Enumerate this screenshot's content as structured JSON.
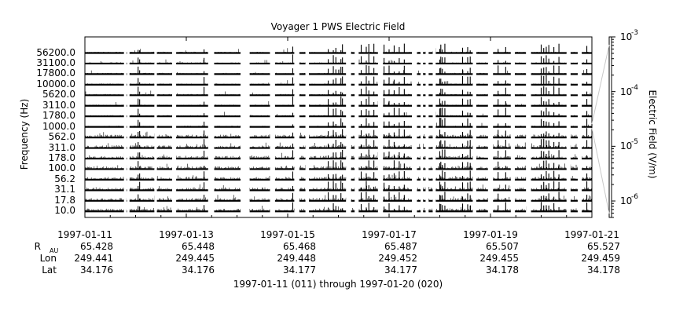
{
  "chart_data": {
    "type": "heatmap",
    "title": "Voyager 1 PWS Electric Field",
    "ylabel": "Frequency (Hz)",
    "y2label": "Electric Field (V/m)",
    "frequency_channels_hz": [
      "56200.0",
      "31100.0",
      "17800.0",
      "10000.0",
      "5620.0",
      "3110.0",
      "1780.0",
      "1000.0",
      "562.0",
      "311.0",
      "178.0",
      "100.0",
      "56.2",
      "31.1",
      "17.8",
      "10.0"
    ],
    "x_tick_dates": [
      "1997-01-11",
      "1997-01-13",
      "1997-01-15",
      "1997-01-17",
      "1997-01-19",
      "1997-01-21"
    ],
    "x_range_days": [
      0,
      10
    ],
    "colorbar": {
      "scale": "log",
      "range": [
        5e-07,
        0.001
      ],
      "ticks": [
        {
          "base": "10",
          "exp": "-3"
        },
        {
          "base": "10",
          "exp": "-4"
        },
        {
          "base": "10",
          "exp": "-5"
        },
        {
          "base": "10",
          "exp": "-6"
        }
      ]
    },
    "ephemeris_rows": [
      {
        "label": "R",
        "sub": "AU",
        "values": [
          "65.428",
          "65.448",
          "65.468",
          "65.487",
          "65.507",
          "65.527"
        ]
      },
      {
        "label": "Lon",
        "sub": "",
        "values": [
          "249.441",
          "249.445",
          "249.448",
          "249.452",
          "249.455",
          "249.459"
        ]
      },
      {
        "label": "Lat",
        "sub": "",
        "values": [
          "34.176",
          "34.176",
          "34.177",
          "34.177",
          "34.178",
          "34.178"
        ]
      }
    ],
    "footer": "1997-01-11 (011) through 1997-01-20 (020)",
    "data_gaps_days": [
      [
        0.77,
        0.82
      ],
      [
        0.83,
        0.88
      ],
      [
        1.37,
        1.42
      ],
      [
        1.72,
        1.8
      ],
      [
        2.43,
        2.55
      ],
      [
        3.07,
        3.25
      ],
      [
        3.65,
        3.75
      ],
      [
        4.13,
        4.23
      ],
      [
        4.35,
        4.42
      ],
      [
        5.15,
        5.25
      ],
      [
        5.32,
        5.4
      ],
      [
        5.78,
        5.88
      ],
      [
        6.45,
        6.55
      ],
      [
        6.62,
        6.67
      ],
      [
        6.72,
        6.78
      ],
      [
        6.86,
        6.92
      ],
      [
        7.65,
        7.72
      ],
      [
        7.95,
        8.05
      ],
      [
        8.4,
        8.48
      ],
      [
        8.7,
        8.8
      ],
      [
        9.5,
        9.58
      ],
      [
        9.72,
        9.8
      ]
    ],
    "burst_times_days": [
      1.05,
      1.08,
      2.35,
      4.1,
      4.18,
      4.2,
      4.8,
      4.9,
      4.95,
      5.05,
      5.08,
      5.45,
      5.55,
      5.6,
      5.7,
      5.9,
      6.0,
      6.1,
      6.2,
      6.3,
      7.0,
      7.02,
      7.05,
      7.1,
      7.45,
      7.55,
      7.6,
      8.15,
      8.3,
      8.45,
      9.0,
      9.05,
      9.1,
      9.15,
      9.25,
      9.35,
      9.9
    ]
  }
}
